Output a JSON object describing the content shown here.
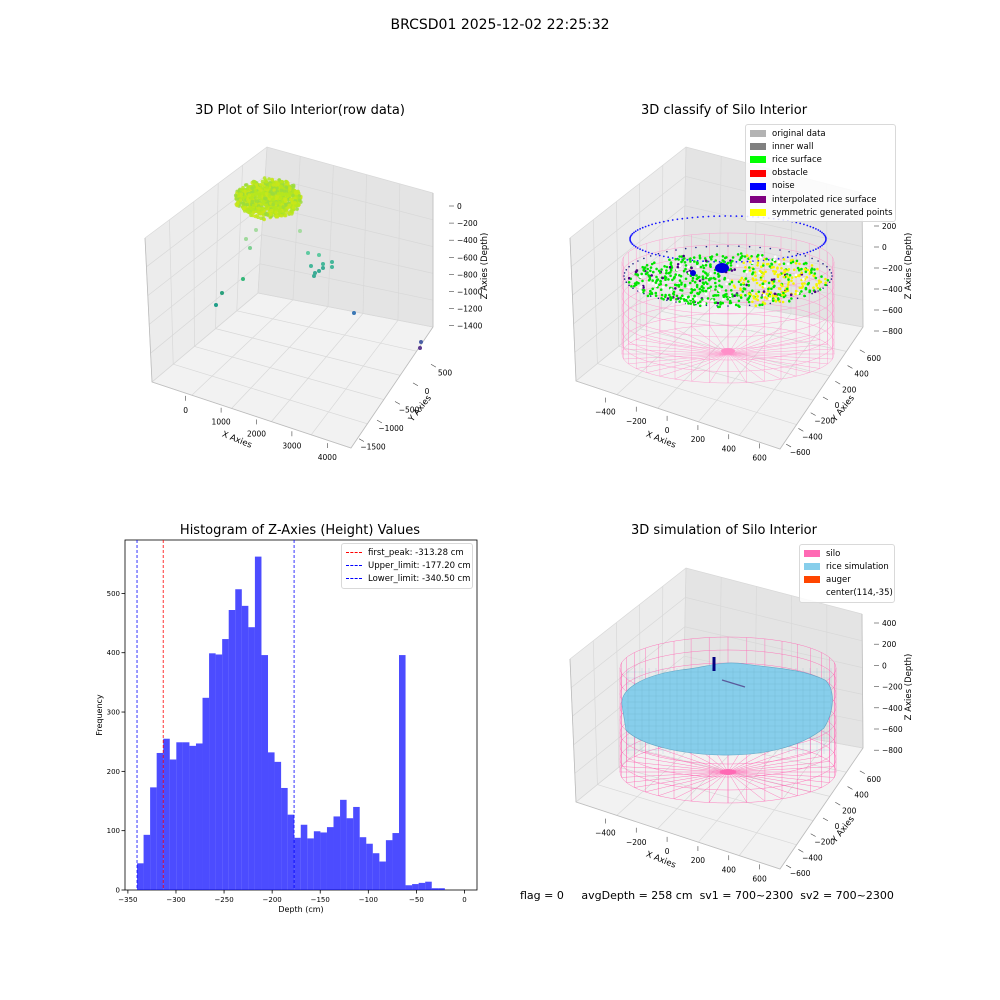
{
  "figure": {
    "suptitle": "BRCSD01 2025-12-02 22:25:32"
  },
  "panels": {
    "raw": {
      "title": "3D Plot of Silo Interior(row data)",
      "xlabel": "X Axies",
      "ylabel": "Y Axies",
      "zlabel": "Z Axies (Depth)",
      "xticks": [
        "0",
        "1000",
        "2000",
        "3000",
        "4000"
      ],
      "yticks": [
        "500",
        "0",
        "−500",
        "−1000",
        "−1500"
      ],
      "zticks": [
        "0",
        "−200",
        "−400",
        "−600",
        "−800",
        "−1000",
        "−1200",
        "−1400"
      ]
    },
    "classify": {
      "title": "3D classify of Silo Interior",
      "xlabel": "X Axies",
      "ylabel": "Y Axies",
      "zlabel": "Z Axies (Depth)",
      "xticks": [
        "−400",
        "−200",
        "0",
        "200",
        "400",
        "600"
      ],
      "yticks": [
        "600",
        "400",
        "200",
        "0",
        "−200",
        "−400",
        "−600"
      ],
      "zticks": [
        "200",
        "0",
        "−200",
        "−400",
        "−600",
        "−800"
      ],
      "legend": [
        {
          "label": "original data",
          "color": "#b3b3b3"
        },
        {
          "label": "inner wall",
          "color": "#808080"
        },
        {
          "label": "rice surface",
          "color": "#00ff00"
        },
        {
          "label": "obstacle",
          "color": "#ff0000"
        },
        {
          "label": "noise",
          "color": "#0000ff"
        },
        {
          "label": "interpolated rice surface",
          "color": "#800080"
        },
        {
          "label": "symmetric generated points",
          "color": "#ffff00"
        }
      ]
    },
    "simulation": {
      "title": "3D simulation of Silo Interior",
      "xlabel": "X Axies",
      "ylabel": "Y Axies",
      "zlabel": "Z Axies (Depth)",
      "xticks": [
        "−400",
        "−200",
        "0",
        "200",
        "400",
        "600"
      ],
      "yticks": [
        "600",
        "400",
        "200",
        "0",
        "−200",
        "−400",
        "−600"
      ],
      "zticks": [
        "400",
        "200",
        "0",
        "−200",
        "−400",
        "−600",
        "−800"
      ],
      "legend": [
        {
          "label": "silo",
          "color": "#ff69b4"
        },
        {
          "label": "rice simulation",
          "color": "#87ceeb"
        },
        {
          "label": "auger",
          "color": "#ff4500"
        },
        {
          "label": "center(114,-35)",
          "color": ""
        }
      ]
    }
  },
  "status": {
    "flag": "flag = 0",
    "avg_depth": "avgDepth = 258 cm",
    "sv1": "sv1 = 700~2300",
    "sv2": "sv2 = 700~2300"
  },
  "chart_data": [
    {
      "type": "scatter",
      "title": "3D Plot of Silo Interior(row data)",
      "xlabel": "X Axies",
      "ylabel": "Y Axies",
      "zlabel": "Z Axies (Depth)",
      "xlim": [
        -400,
        4400
      ],
      "ylim": [
        -1800,
        700
      ],
      "zlim": [
        -1500,
        80
      ]
    },
    {
      "type": "scatter",
      "title": "3D classify of Silo Interior",
      "xlabel": "X Axies",
      "ylabel": "Y Axies",
      "zlabel": "Z Axies (Depth)",
      "xlim": [
        -500,
        720
      ],
      "ylim": [
        -650,
        680
      ],
      "zlim": [
        -900,
        300
      ],
      "series": [
        {
          "name": "original data"
        },
        {
          "name": "inner wall"
        },
        {
          "name": "rice surface"
        },
        {
          "name": "obstacle"
        },
        {
          "name": "noise"
        },
        {
          "name": "interpolated rice surface"
        },
        {
          "name": "symmetric generated points"
        }
      ]
    },
    {
      "type": "bar",
      "title": "Histogram of Z-Axies (Height) Values",
      "xlabel": "Depth (cm)",
      "ylabel": "Frequency",
      "xlim": [
        -353,
        13
      ],
      "ylim": [
        0,
        590
      ],
      "xticks": [
        -350,
        -300,
        -250,
        -200,
        -150,
        -100,
        -50,
        0
      ],
      "yticks": [
        0,
        100,
        200,
        300,
        400,
        500
      ],
      "bin_start": -340.5,
      "bin_width": 6.81,
      "values": [
        45,
        93,
        173,
        231,
        255,
        220,
        249,
        249,
        243,
        247,
        324,
        399,
        397,
        423,
        472,
        507,
        479,
        443,
        562,
        396,
        232,
        216,
        172,
        127,
        88,
        110,
        87,
        99,
        97,
        106,
        124,
        152,
        121,
        140,
        89,
        78,
        62,
        48,
        84,
        96,
        396,
        8,
        10,
        12,
        14,
        3,
        3
      ],
      "vlines": [
        {
          "label": "first_peak: -313.28 cm",
          "x": -313.28,
          "color": "#ff0000"
        },
        {
          "label": "Upper_limit: -177.20 cm",
          "x": -177.2,
          "color": "#0000ff"
        },
        {
          "label": "Lower_limit: -340.50 cm",
          "x": -340.5,
          "color": "#0000ff"
        }
      ]
    },
    {
      "type": "area",
      "title": "3D simulation of Silo Interior",
      "xlabel": "X Axies",
      "ylabel": "Y Axies",
      "zlabel": "Z Axies (Depth)",
      "xlim": [
        -500,
        720
      ],
      "ylim": [
        -650,
        680
      ],
      "zlim": [
        -900,
        480
      ],
      "series": [
        {
          "name": "silo"
        },
        {
          "name": "rice simulation"
        },
        {
          "name": "auger"
        }
      ]
    }
  ]
}
